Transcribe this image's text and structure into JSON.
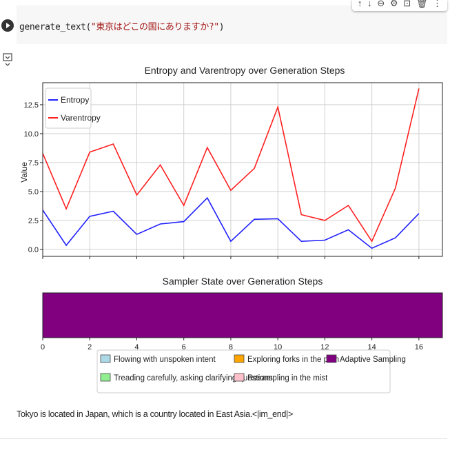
{
  "cell": {
    "code": {
      "function_name": "generate_text",
      "open_paren": "(",
      "string_arg": "\"東京はどこの国にありますか?\"",
      "close_paren": ")"
    },
    "toolbar": {
      "icons": [
        "arrow-up-icon",
        "arrow-down-icon",
        "link-icon",
        "gear-icon",
        "mirror-icon",
        "trash-icon",
        "more-icon"
      ],
      "glyphs": [
        "↑",
        "↓",
        "⊖",
        "⚙",
        "⊡",
        "🗑",
        "⋮"
      ]
    },
    "output_text": "Tokyo is located in Japan, which is a country located in East Asia.<|im_end|>"
  },
  "chart_data": [
    {
      "type": "line",
      "title": "Entropy and Varentropy over Generation Steps",
      "ylabel": "Value",
      "xlabel": "",
      "x": [
        0,
        1,
        2,
        3,
        4,
        5,
        6,
        7,
        8,
        9,
        10,
        11,
        12,
        13,
        14,
        15,
        16
      ],
      "xlim": [
        0,
        17
      ],
      "ylim": [
        -0.6,
        14.4
      ],
      "yticks": [
        "0.0",
        "2.5",
        "5.0",
        "7.5",
        "10.0",
        "12.5"
      ],
      "grid": true,
      "legend_position": "upper left",
      "series": [
        {
          "name": "Entropy",
          "color": "#1f1fff",
          "values": [
            3.4,
            0.35,
            2.85,
            3.3,
            1.3,
            2.2,
            2.4,
            4.45,
            0.7,
            2.6,
            2.65,
            0.7,
            0.8,
            1.7,
            0.1,
            1.0,
            3.1
          ]
        },
        {
          "name": "Varentropy",
          "color": "#ff2020",
          "values": [
            8.3,
            3.5,
            8.4,
            9.1,
            4.7,
            7.3,
            3.8,
            8.8,
            5.1,
            7.0,
            12.3,
            3.0,
            2.5,
            3.8,
            0.7,
            5.3,
            13.9
          ]
        }
      ]
    },
    {
      "type": "heatmap",
      "title": "Sampler State over Generation Steps",
      "xticks": [
        0,
        2,
        4,
        6,
        8,
        10,
        12,
        14,
        16
      ],
      "xlim": [
        0,
        17
      ],
      "states": [
        "Adaptive Sampling",
        "Adaptive Sampling",
        "Adaptive Sampling",
        "Adaptive Sampling",
        "Adaptive Sampling",
        "Adaptive Sampling",
        "Adaptive Sampling",
        "Adaptive Sampling",
        "Adaptive Sampling",
        "Adaptive Sampling",
        "Adaptive Sampling",
        "Adaptive Sampling",
        "Adaptive Sampling",
        "Adaptive Sampling",
        "Adaptive Sampling",
        "Adaptive Sampling",
        "Adaptive Sampling"
      ],
      "legend": [
        {
          "label": "Flowing with unspoken intent",
          "color": "#add8e6"
        },
        {
          "label": "Exploring forks in the path",
          "color": "#ffa500"
        },
        {
          "label": "Adaptive Sampling",
          "color": "#800080"
        },
        {
          "label": "Treading carefully, asking clarifying questions",
          "color": "#90ee90"
        },
        {
          "label": "Resampling in the mist",
          "color": "#ffc0cb"
        }
      ]
    }
  ]
}
